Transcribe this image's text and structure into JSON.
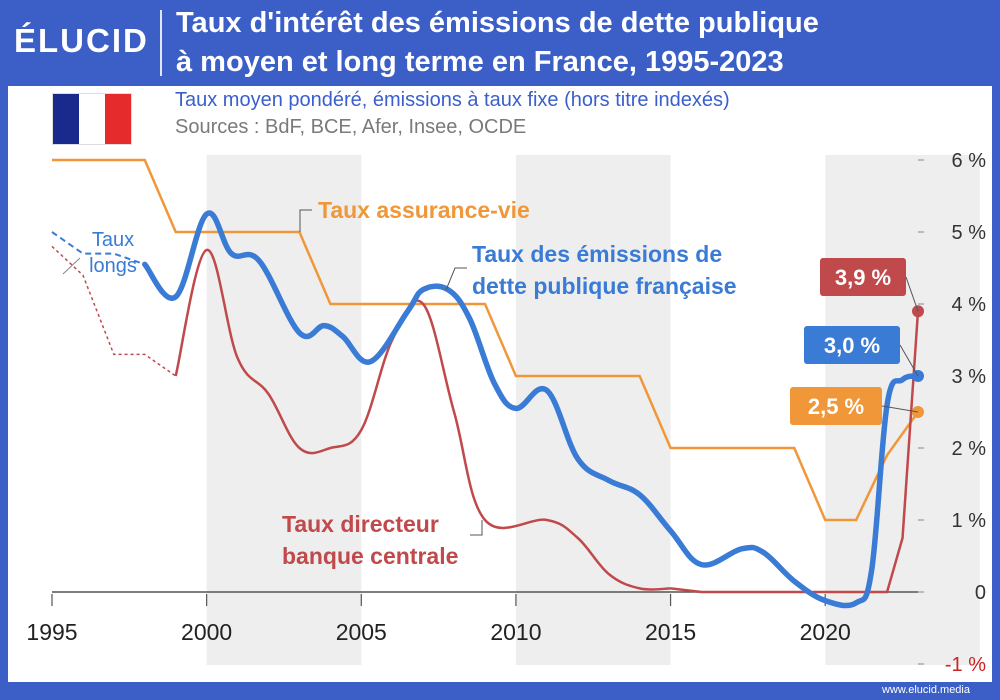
{
  "brand": {
    "logo": "ÉLUCID",
    "footer_url": "www.elucid.media"
  },
  "header": {
    "title_line1": "Taux d'intérêt des émissions de dette publique",
    "title_line2": "à moyen et long terme en France, 1995-2023"
  },
  "subtitle": "Taux moyen pondéré, émissions à taux fixe (hors titre indexés)",
  "sources": "Sources : BdF, BCE, Afer, Insee, OCDE",
  "flag_colors": [
    "#1a2a8c",
    "#ffffff",
    "#e52b2b"
  ],
  "colors": {
    "blue": "#3a7bd5",
    "orange": "#f0973a",
    "red": "#c0494b",
    "grid_band": "#eeeeee"
  },
  "chart_data": {
    "type": "line",
    "xlabel": "",
    "ylabel": "",
    "xlim": [
      1995,
      2023
    ],
    "ylim": [
      -1,
      6
    ],
    "x_ticks": [
      1995,
      2000,
      2005,
      2010,
      2015,
      2020
    ],
    "y_ticks": [
      -1,
      0,
      1,
      2,
      3,
      4,
      5,
      6
    ],
    "y_tick_labels": [
      "-1 %",
      "0",
      "1 %",
      "2 %",
      "3 %",
      "4 %",
      "5 %",
      "6 %"
    ],
    "grid": true,
    "series": [
      {
        "name": "Taux assurance-vie",
        "label_lines": [
          "Taux assurance-vie"
        ],
        "color": "#f0973a",
        "end_label": "2,5 %",
        "points": [
          [
            1995,
            6.0
          ],
          [
            1998,
            6.0
          ],
          [
            1999,
            5.0
          ],
          [
            2003,
            5.0
          ],
          [
            2004,
            4.0
          ],
          [
            2009,
            4.0
          ],
          [
            2010,
            3.0
          ],
          [
            2014,
            3.0
          ],
          [
            2015,
            2.0
          ],
          [
            2019,
            2.0
          ],
          [
            2020,
            1.0
          ],
          [
            2021,
            1.0
          ],
          [
            2022,
            1.9
          ],
          [
            2023,
            2.5
          ]
        ]
      },
      {
        "name": "Taux des émissions de dette publique française",
        "label_lines": [
          "Taux des émissions de",
          "dette publique française"
        ],
        "color": "#3a7bd5",
        "end_label": "3,0 %",
        "points": [
          [
            1998,
            4.55
          ],
          [
            1999,
            4.1
          ],
          [
            2000,
            5.25
          ],
          [
            2000.8,
            4.7
          ],
          [
            2001.7,
            4.6
          ],
          [
            2003,
            3.6
          ],
          [
            2003.8,
            3.7
          ],
          [
            2004.4,
            3.55
          ],
          [
            2005.3,
            3.2
          ],
          [
            2006.5,
            3.9
          ],
          [
            2007,
            4.2
          ],
          [
            2007.8,
            4.2
          ],
          [
            2008.5,
            3.8
          ],
          [
            2009.3,
            2.9
          ],
          [
            2010,
            2.55
          ],
          [
            2011,
            2.8
          ],
          [
            2012,
            1.85
          ],
          [
            2013,
            1.55
          ],
          [
            2014,
            1.35
          ],
          [
            2015,
            0.85
          ],
          [
            2016,
            0.38
          ],
          [
            2017.3,
            0.6
          ],
          [
            2018,
            0.55
          ],
          [
            2019,
            0.15
          ],
          [
            2020,
            -0.12
          ],
          [
            2021,
            -0.15
          ],
          [
            2021.5,
            0.3
          ],
          [
            2022,
            2.6
          ],
          [
            2022.5,
            2.95
          ],
          [
            2023,
            3.0
          ]
        ]
      },
      {
        "name": "Taux directeur banque centrale",
        "label_lines": [
          "Taux directeur",
          "banque centrale"
        ],
        "color": "#c0494b",
        "end_label": "3,9 %",
        "points": [
          [
            1999,
            3.0
          ],
          [
            2000,
            4.75
          ],
          [
            2001,
            3.25
          ],
          [
            2002,
            2.75
          ],
          [
            2003,
            2.0
          ],
          [
            2004,
            2.0
          ],
          [
            2005,
            2.25
          ],
          [
            2006,
            3.5
          ],
          [
            2007,
            4.0
          ],
          [
            2008,
            2.5
          ],
          [
            2009,
            1.0
          ],
          [
            2011,
            1.0
          ],
          [
            2012,
            0.75
          ],
          [
            2013,
            0.25
          ],
          [
            2014,
            0.05
          ],
          [
            2015,
            0.05
          ],
          [
            2016,
            0.0
          ],
          [
            2022,
            0.0
          ],
          [
            2022.5,
            0.75
          ],
          [
            2023,
            3.9
          ]
        ]
      },
      {
        "name": "Taux longs",
        "label_lines": [
          "Taux",
          "longs"
        ],
        "color": "#3a7bd5",
        "style": "dashed",
        "points": [
          [
            1995,
            5.0
          ],
          [
            1996,
            4.7
          ],
          [
            1997,
            4.7
          ],
          [
            1998,
            4.55
          ]
        ]
      },
      {
        "name": "",
        "color": "#c0494b",
        "style": "dotted",
        "points": [
          [
            1995,
            4.8
          ],
          [
            1996,
            4.4
          ],
          [
            1997,
            3.3
          ],
          [
            1998,
            3.3
          ],
          [
            1999,
            3.0
          ]
        ]
      }
    ]
  }
}
